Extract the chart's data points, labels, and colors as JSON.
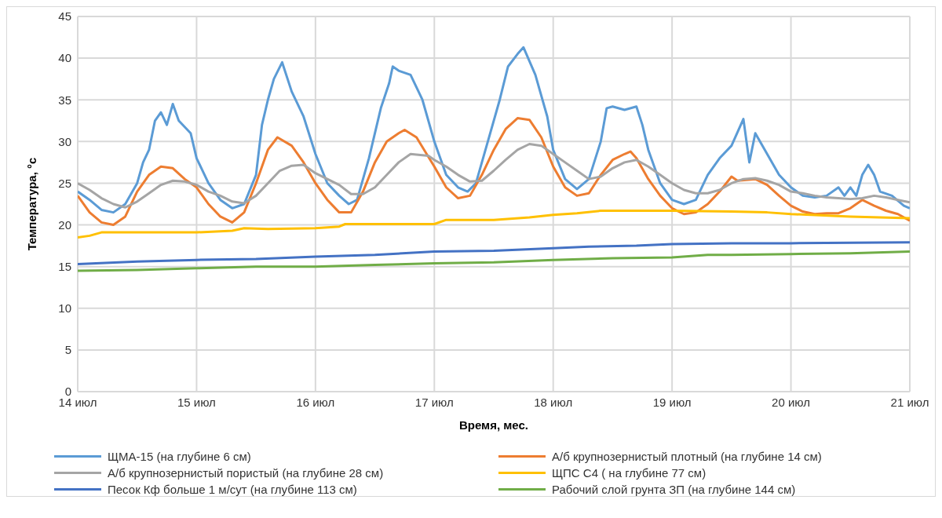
{
  "chart_data": {
    "type": "line",
    "xlabel": "Время, мес.",
    "ylabel": "Температура, °с",
    "xlim": [
      14,
      21
    ],
    "xticks": [
      {
        "value": 14,
        "label": "14 июл"
      },
      {
        "value": 15,
        "label": "15 июл"
      },
      {
        "value": 16,
        "label": "16 июл"
      },
      {
        "value": 17,
        "label": "17 июл"
      },
      {
        "value": 18,
        "label": "18 июл"
      },
      {
        "value": 19,
        "label": "19 июл"
      },
      {
        "value": 20,
        "label": "20 июл"
      },
      {
        "value": 21,
        "label": "21 июл"
      }
    ],
    "ylim": [
      0,
      45
    ],
    "yticks": [
      0,
      5,
      10,
      15,
      20,
      25,
      30,
      35,
      40,
      45
    ],
    "grid": true,
    "legend": "bottom",
    "series": [
      {
        "name": "ЩМА-15 (на глубине 6 см)",
        "color": "#5b9bd5",
        "x": [
          14.0,
          14.1,
          14.2,
          14.3,
          14.4,
          14.5,
          14.55,
          14.6,
          14.65,
          14.7,
          14.75,
          14.8,
          14.85,
          14.95,
          15.0,
          15.1,
          15.2,
          15.3,
          15.4,
          15.5,
          15.55,
          15.6,
          15.65,
          15.72,
          15.8,
          15.9,
          16.0,
          16.1,
          16.2,
          16.28,
          16.35,
          16.45,
          16.55,
          16.62,
          16.65,
          16.7,
          16.8,
          16.9,
          17.0,
          17.1,
          17.2,
          17.28,
          17.35,
          17.45,
          17.55,
          17.62,
          17.7,
          17.75,
          17.85,
          17.95,
          18.0,
          18.1,
          18.2,
          18.3,
          18.4,
          18.45,
          18.5,
          18.6,
          18.7,
          18.75,
          18.8,
          18.9,
          19.0,
          19.1,
          19.2,
          19.3,
          19.4,
          19.5,
          19.6,
          19.65,
          19.7,
          19.8,
          19.9,
          20.0,
          20.1,
          20.2,
          20.3,
          20.4,
          20.45,
          20.5,
          20.55,
          20.6,
          20.65,
          20.7,
          20.75,
          20.85,
          20.95,
          21.0
        ],
        "values": [
          24,
          23,
          21.8,
          21.5,
          22.5,
          25,
          27.5,
          29,
          32.5,
          33.5,
          32,
          34.5,
          32.5,
          31,
          28,
          25,
          23,
          22,
          22.5,
          26,
          32,
          35,
          37.5,
          39.5,
          36,
          33,
          28.5,
          25,
          23.5,
          22.5,
          23,
          28,
          34,
          37,
          39,
          38.5,
          38,
          35,
          30,
          26,
          24.5,
          24,
          25,
          30,
          35,
          39,
          40.5,
          41.3,
          38,
          33,
          29,
          25.5,
          24.3,
          25.5,
          30,
          34,
          34.2,
          33.8,
          34.2,
          32,
          29,
          25,
          23,
          22.5,
          23,
          26,
          28,
          29.5,
          32.7,
          27.5,
          31,
          28.5,
          26,
          24.5,
          23.5,
          23.3,
          23.5,
          24.5,
          23.5,
          24.5,
          23.5,
          26,
          27.2,
          26,
          24,
          23.5,
          22.3,
          22
        ]
      },
      {
        "name": "А/б крупнозернистый плотный (на глубине 14 см)",
        "color": "#ed7d31",
        "x": [
          14.0,
          14.1,
          14.2,
          14.3,
          14.4,
          14.5,
          14.6,
          14.7,
          14.8,
          14.9,
          15.0,
          15.1,
          15.2,
          15.3,
          15.4,
          15.5,
          15.6,
          15.68,
          15.8,
          15.9,
          16.0,
          16.1,
          16.2,
          16.3,
          16.4,
          16.5,
          16.6,
          16.7,
          16.75,
          16.85,
          17.0,
          17.1,
          17.2,
          17.3,
          17.4,
          17.5,
          17.6,
          17.7,
          17.8,
          17.9,
          18.0,
          18.1,
          18.2,
          18.3,
          18.4,
          18.5,
          18.6,
          18.65,
          18.7,
          18.8,
          18.9,
          19.0,
          19.1,
          19.2,
          19.3,
          19.4,
          19.5,
          19.55,
          19.7,
          19.8,
          19.9,
          20.0,
          20.1,
          20.2,
          20.3,
          20.4,
          20.5,
          20.6,
          20.7,
          20.8,
          20.9,
          21.0
        ],
        "values": [
          23.5,
          21.5,
          20.3,
          20,
          21,
          24,
          26,
          27,
          26.8,
          25.5,
          24.5,
          22.5,
          21,
          20.3,
          21.5,
          25,
          29,
          30.5,
          29.5,
          27.5,
          25,
          23,
          21.5,
          21.5,
          24,
          27.5,
          30,
          31,
          31.4,
          30.5,
          27,
          24.5,
          23.2,
          23.5,
          26,
          29,
          31.5,
          32.8,
          32.6,
          30.5,
          27,
          24.5,
          23.5,
          23.8,
          26,
          27.8,
          28.5,
          28.8,
          28,
          25.5,
          23.5,
          22,
          21.3,
          21.5,
          22.5,
          24,
          25.8,
          25.3,
          25.5,
          24.8,
          23.5,
          22.3,
          21.6,
          21.3,
          21.4,
          21.4,
          22,
          23,
          22.3,
          21.7,
          21.3,
          20.5
        ]
      },
      {
        "name": "А/б крупнозернистый пористый (на глубине 28 см)",
        "color": "#a5a5a5",
        "x": [
          14.0,
          14.1,
          14.2,
          14.3,
          14.4,
          14.5,
          14.6,
          14.7,
          14.8,
          14.9,
          15.0,
          15.1,
          15.2,
          15.3,
          15.4,
          15.5,
          15.6,
          15.7,
          15.8,
          15.9,
          16.0,
          16.1,
          16.2,
          16.3,
          16.4,
          16.5,
          16.6,
          16.7,
          16.8,
          16.95,
          17.0,
          17.1,
          17.2,
          17.3,
          17.4,
          17.5,
          17.6,
          17.7,
          17.8,
          17.9,
          18.0,
          18.1,
          18.2,
          18.3,
          18.4,
          18.5,
          18.6,
          18.7,
          18.8,
          18.9,
          19.0,
          19.1,
          19.2,
          19.3,
          19.4,
          19.5,
          19.6,
          19.7,
          19.8,
          19.9,
          20.0,
          20.1,
          20.2,
          20.3,
          20.4,
          20.5,
          20.6,
          20.7,
          20.8,
          20.9,
          21.0
        ],
        "values": [
          25,
          24.2,
          23.2,
          22.5,
          22.1,
          22.8,
          23.8,
          24.8,
          25.3,
          25.2,
          24.8,
          24,
          23.5,
          22.8,
          22.6,
          23.5,
          25,
          26.5,
          27.1,
          27.2,
          26.2,
          25.5,
          24.8,
          23.7,
          23.7,
          24.5,
          26,
          27.5,
          28.5,
          28.3,
          27.8,
          27,
          26,
          25.2,
          25.3,
          26.5,
          27.8,
          29,
          29.7,
          29.5,
          28.5,
          27.5,
          26.5,
          25.5,
          25.8,
          26.8,
          27.5,
          27.8,
          27,
          26,
          25,
          24.2,
          23.8,
          23.8,
          24.2,
          25,
          25.5,
          25.6,
          25.3,
          24.8,
          24,
          23.8,
          23.5,
          23.3,
          23.2,
          23.1,
          23.2,
          23.5,
          23.3,
          23,
          22.7
        ]
      },
      {
        "name": "ЩПС С4 ( на глубине 77 см)",
        "color": "#ffc000",
        "x": [
          14.0,
          14.1,
          14.2,
          14.5,
          15.0,
          15.3,
          15.4,
          15.6,
          16.0,
          16.2,
          16.25,
          16.5,
          17.0,
          17.1,
          17.5,
          17.8,
          18.0,
          18.2,
          18.4,
          18.8,
          19.0,
          19.5,
          19.8,
          20.0,
          20.5,
          21.0
        ],
        "values": [
          18.5,
          18.7,
          19.1,
          19.1,
          19.1,
          19.3,
          19.6,
          19.5,
          19.6,
          19.8,
          20.1,
          20.1,
          20.1,
          20.6,
          20.6,
          20.9,
          21.2,
          21.4,
          21.7,
          21.7,
          21.7,
          21.6,
          21.5,
          21.3,
          21,
          20.8
        ]
      },
      {
        "name": "Песок Кф больше 1 м/сут (на глубине 113 см)",
        "color": "#4472c4",
        "x": [
          14.0,
          14.5,
          15.0,
          15.5,
          16.0,
          16.5,
          17.0,
          17.5,
          18.0,
          18.3,
          18.7,
          19.0,
          19.5,
          20.0,
          21.0
        ],
        "values": [
          15.3,
          15.6,
          15.8,
          15.9,
          16.2,
          16.4,
          16.8,
          16.9,
          17.2,
          17.4,
          17.5,
          17.7,
          17.8,
          17.8,
          17.9
        ]
      },
      {
        "name": "Рабочий слой грунта ЗП (на глубине 144 см)",
        "color": "#70ad47",
        "x": [
          14.0,
          14.5,
          15.0,
          15.5,
          16.0,
          16.5,
          17.0,
          17.5,
          18.0,
          18.5,
          19.0,
          19.3,
          19.5,
          20.0,
          20.5,
          21.0
        ],
        "values": [
          14.5,
          14.6,
          14.8,
          15.0,
          15.0,
          15.2,
          15.4,
          15.5,
          15.8,
          16.0,
          16.1,
          16.4,
          16.4,
          16.5,
          16.6,
          16.8
        ]
      }
    ]
  }
}
